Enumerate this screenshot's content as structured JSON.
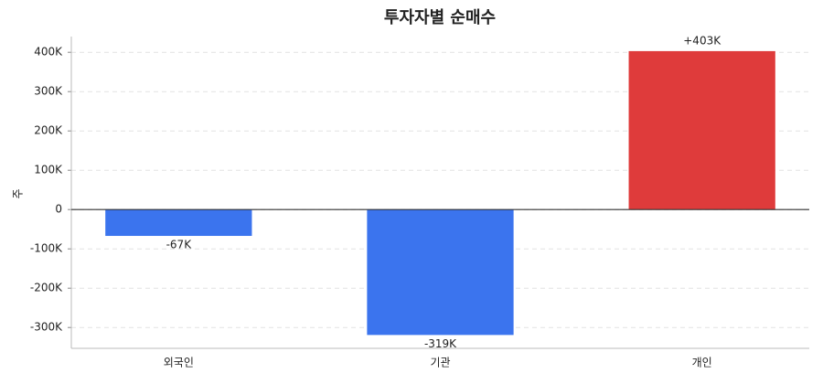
{
  "chart_data": {
    "type": "bar",
    "title": "투자자별 순매수",
    "y_label": "주",
    "categories": [
      "외국인",
      "기관",
      "개인"
    ],
    "values": [
      -67000,
      -319000,
      403000
    ],
    "value_labels": [
      "-67K",
      "-319K",
      "+403K"
    ],
    "colors": [
      "#3b74ee",
      "#3b74ee",
      "#df3b3b"
    ],
    "ylim": [
      -353000,
      440000
    ],
    "yticks": [
      {
        "value": -300000,
        "label": "-300K"
      },
      {
        "value": -200000,
        "label": "-200K"
      },
      {
        "value": -100000,
        "label": "-100K"
      },
      0,
      {
        "value": 100000,
        "label": "100K"
      },
      {
        "value": 200000,
        "label": "200K"
      },
      {
        "value": 300000,
        "label": "300K"
      },
      {
        "value": 400000,
        "label": "400K"
      }
    ],
    "grid": true
  }
}
